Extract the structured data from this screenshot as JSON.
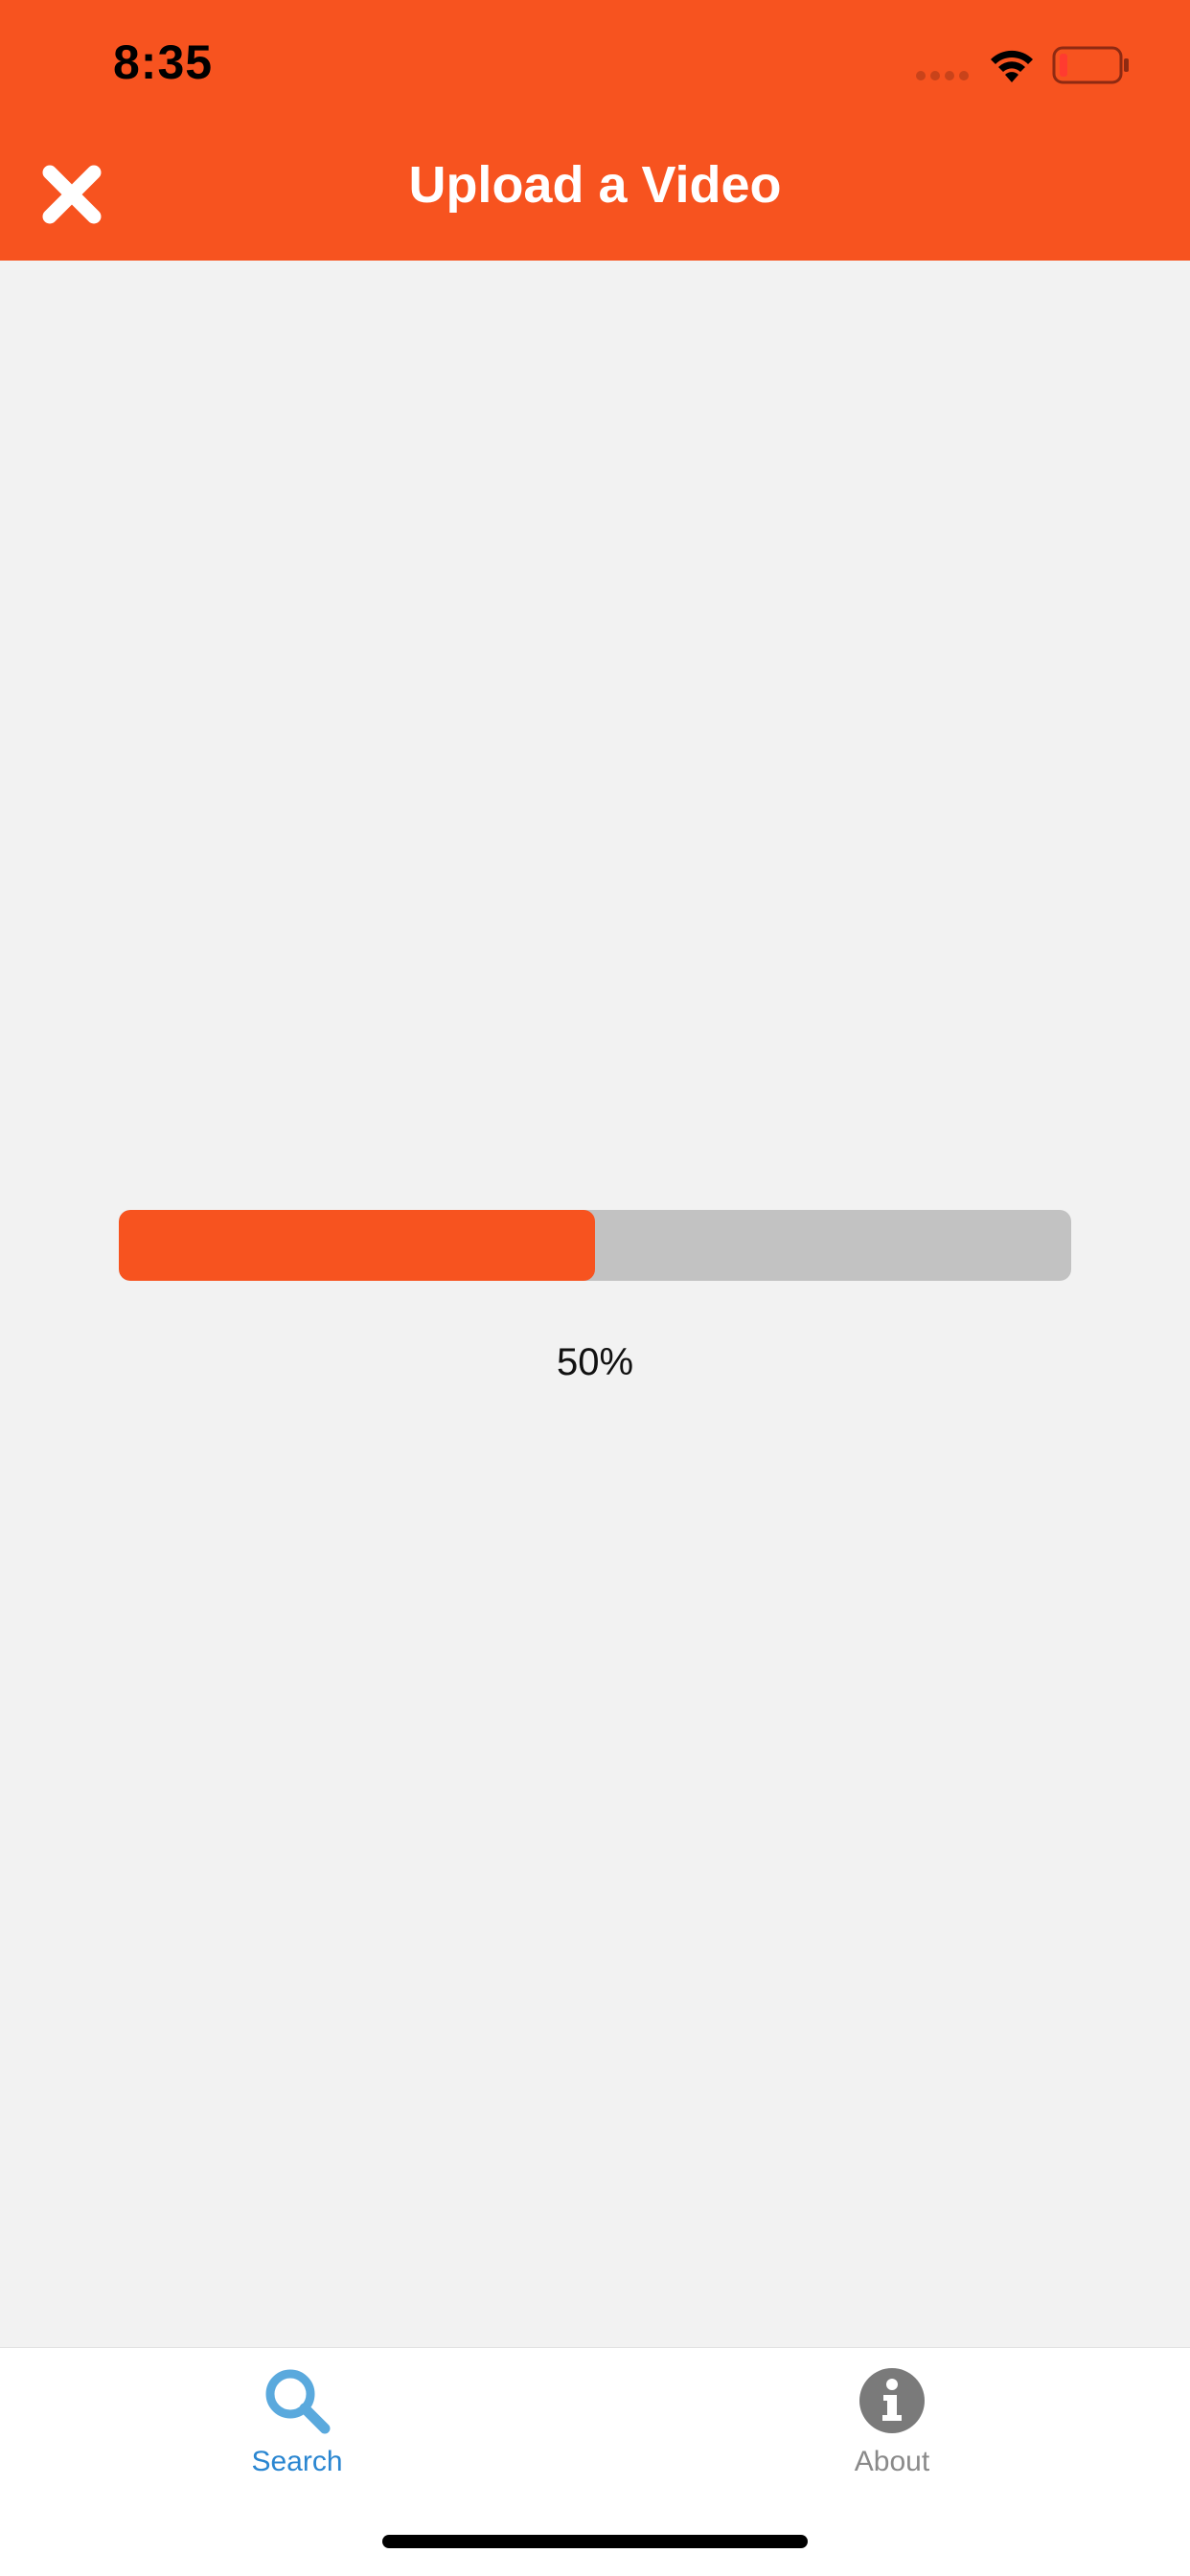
{
  "status_bar": {
    "time": "8:35"
  },
  "header": {
    "title": "Upload a Video"
  },
  "upload": {
    "progress_percent": 50,
    "progress_label": "50%"
  },
  "tabbar": {
    "tabs": [
      {
        "label": "Search",
        "icon": "search-icon",
        "active": true
      },
      {
        "label": "About",
        "icon": "info-icon",
        "active": false
      }
    ]
  },
  "colors": {
    "accent": "#F7531F",
    "background": "#F2F2F2",
    "track": "#C2C2C2",
    "active_tab": "#2A86D1",
    "inactive_tab": "#8A8A8A"
  }
}
